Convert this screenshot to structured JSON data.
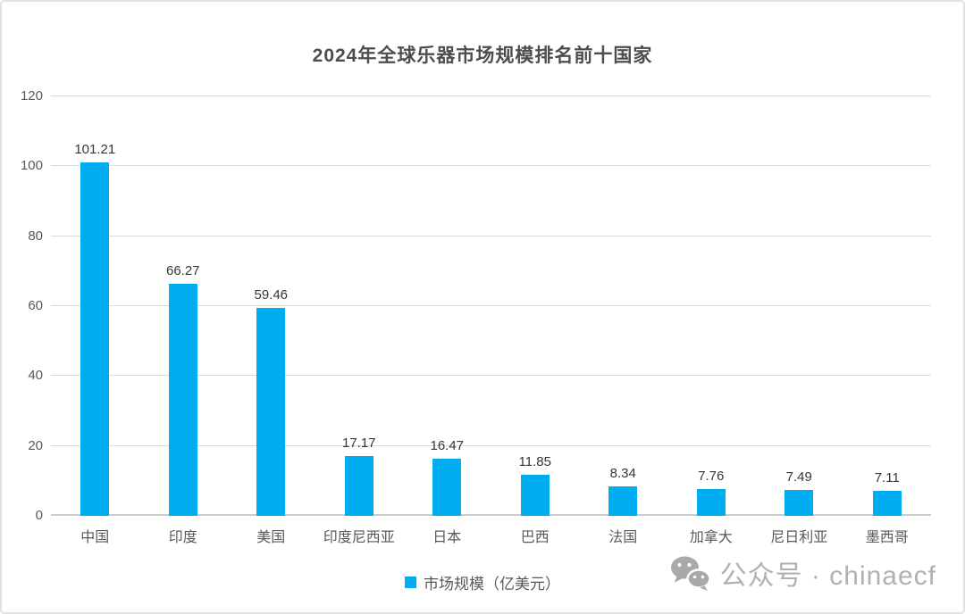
{
  "chart_data": {
    "type": "bar",
    "title": "2024年全球乐器市场规模排名前十国家",
    "categories": [
      "中国",
      "印度",
      "美国",
      "印度尼西亚",
      "日本",
      "巴西",
      "法国",
      "加拿大",
      "尼日利亚",
      "墨西哥"
    ],
    "values": [
      101.21,
      66.27,
      59.46,
      17.17,
      16.47,
      11.85,
      8.34,
      7.76,
      7.49,
      7.11
    ],
    "value_labels": [
      "101.21",
      "66.27",
      "59.46",
      "17.17",
      "16.47",
      "11.85",
      "8.34",
      "7.76",
      "7.49",
      "7.11"
    ],
    "xlabel": "",
    "ylabel": "",
    "ylim": [
      0,
      120
    ],
    "y_ticks": [
      0,
      20,
      40,
      60,
      80,
      100,
      120
    ],
    "grid": "horizontal-on",
    "bar_color": "#00AEEF",
    "legend": {
      "label": "市场规模（亿美元）",
      "position": "bottom-center",
      "swatch_color": "#00AEEF"
    }
  },
  "watermark": {
    "icon": "wechat-icon",
    "text": "公众号 · chinaecf"
  },
  "colors": {
    "bar": "#00AEEF",
    "gridline": "#d9d9d9",
    "axis_line": "#cccccc",
    "tick_label": "#595959",
    "data_label": "#363636",
    "title": "#4d4d4d",
    "watermark": "#b1b1b1",
    "card_border": "#e1e1e1"
  }
}
